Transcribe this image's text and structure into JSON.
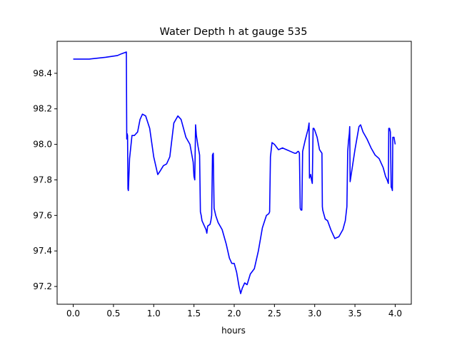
{
  "chart_data": {
    "type": "line",
    "title": "Water Depth h at gauge 535",
    "xlabel": "hours",
    "ylabel": "",
    "xlim": [
      -0.2,
      4.2
    ],
    "ylim": [
      97.1,
      98.58
    ],
    "grid": false,
    "legend": "none",
    "x_ticks": [
      0.0,
      0.5,
      1.0,
      1.5,
      2.0,
      2.5,
      3.0,
      3.5,
      4.0
    ],
    "x_tick_labels": [
      "0.0",
      "0.5",
      "1.0",
      "1.5",
      "2.0",
      "2.5",
      "3.0",
      "3.5",
      "4.0"
    ],
    "y_ticks": [
      97.2,
      97.4,
      97.6,
      97.8,
      98.0,
      98.2,
      98.4
    ],
    "y_tick_labels": [
      "97.2",
      "97.4",
      "97.6",
      "97.8",
      "98.0",
      "98.2",
      "98.4"
    ],
    "series": [
      {
        "color": "#0000ff",
        "x": [
          0.0,
          0.2,
          0.4,
          0.55,
          0.6,
          0.66,
          0.665,
          0.67,
          0.675,
          0.68,
          0.685,
          0.69,
          0.7,
          0.73,
          0.76,
          0.8,
          0.83,
          0.86,
          0.9,
          0.95,
          1.0,
          1.05,
          1.08,
          1.12,
          1.16,
          1.2,
          1.25,
          1.3,
          1.34,
          1.4,
          1.45,
          1.49,
          1.5,
          1.51,
          1.52,
          1.53,
          1.55,
          1.57,
          1.58,
          1.59,
          1.6,
          1.63,
          1.65,
          1.66,
          1.67,
          1.7,
          1.71,
          1.72,
          1.73,
          1.74,
          1.75,
          1.77,
          1.8,
          1.85,
          1.9,
          1.94,
          1.97,
          2.0,
          2.03,
          2.06,
          2.08,
          2.1,
          2.13,
          2.16,
          2.2,
          2.25,
          2.3,
          2.35,
          2.4,
          2.43,
          2.44,
          2.45,
          2.47,
          2.5,
          2.55,
          2.6,
          2.65,
          2.7,
          2.75,
          2.77,
          2.79,
          2.8,
          2.81,
          2.82,
          2.83,
          2.84,
          2.85,
          2.88,
          2.92,
          2.93,
          2.935,
          2.94,
          2.95,
          2.96,
          2.97,
          2.98,
          2.99,
          3.0,
          3.03,
          3.06,
          3.09,
          3.095,
          3.1,
          3.13,
          3.16,
          3.2,
          3.25,
          3.3,
          3.35,
          3.38,
          3.4,
          3.41,
          3.42,
          3.43,
          3.435,
          3.44,
          3.45,
          3.5,
          3.55,
          3.57,
          3.6,
          3.65,
          3.7,
          3.75,
          3.8,
          3.85,
          3.88,
          3.9,
          3.915,
          3.92,
          3.93,
          3.94,
          3.95,
          3.96,
          3.965,
          3.97,
          3.985,
          4.0
        ],
        "y": [
          98.48,
          98.48,
          98.49,
          98.5,
          98.51,
          98.52,
          98.03,
          98.06,
          98.05,
          97.75,
          97.74,
          97.8,
          97.92,
          98.05,
          98.05,
          98.07,
          98.14,
          98.17,
          98.16,
          98.09,
          97.93,
          97.83,
          97.85,
          97.88,
          97.89,
          97.93,
          98.12,
          98.16,
          98.14,
          98.04,
          98.0,
          97.9,
          97.82,
          97.8,
          98.11,
          98.05,
          97.99,
          97.94,
          97.62,
          97.6,
          97.57,
          97.54,
          97.52,
          97.5,
          97.54,
          97.55,
          97.57,
          97.6,
          97.94,
          97.95,
          97.64,
          97.6,
          97.56,
          97.52,
          97.44,
          97.36,
          97.33,
          97.33,
          97.28,
          97.2,
          97.16,
          97.19,
          97.22,
          97.21,
          97.27,
          97.3,
          97.4,
          97.53,
          97.6,
          97.61,
          97.62,
          97.93,
          98.01,
          98.0,
          97.97,
          97.98,
          97.97,
          97.96,
          97.95,
          97.95,
          97.96,
          97.96,
          97.95,
          97.64,
          97.63,
          97.63,
          97.96,
          98.02,
          98.09,
          98.12,
          97.81,
          97.82,
          97.83,
          97.8,
          97.78,
          98.09,
          98.09,
          98.08,
          98.04,
          97.97,
          97.95,
          97.65,
          97.63,
          97.58,
          97.57,
          97.52,
          97.47,
          97.48,
          97.52,
          97.57,
          97.65,
          97.96,
          98.02,
          98.06,
          98.1,
          97.79,
          97.82,
          97.97,
          98.1,
          98.11,
          98.07,
          98.03,
          97.98,
          97.94,
          97.92,
          97.87,
          97.82,
          97.8,
          97.78,
          98.09,
          98.09,
          98.07,
          97.76,
          97.75,
          97.74,
          98.04,
          98.04,
          98.0
        ]
      }
    ]
  }
}
